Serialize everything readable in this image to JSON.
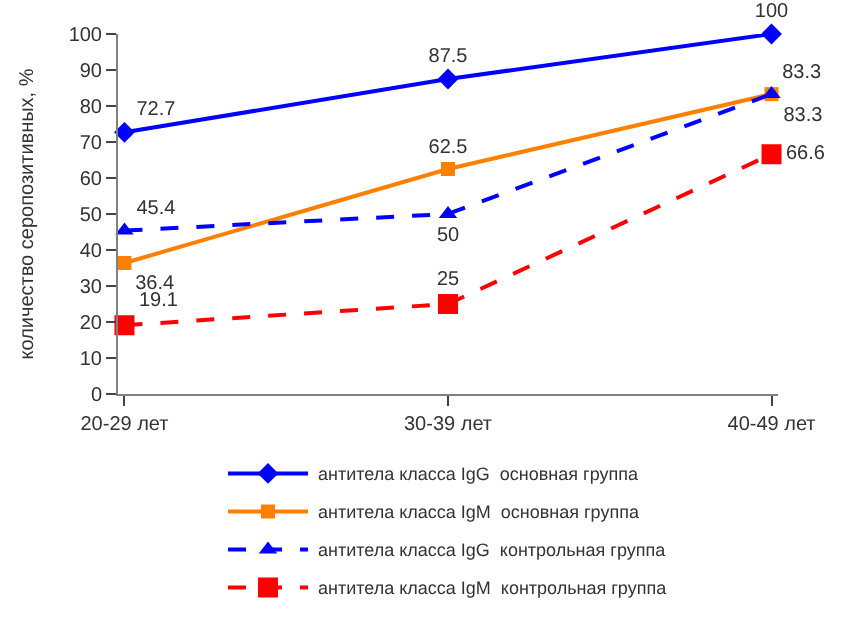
{
  "chart_data": {
    "type": "line",
    "ylabel": "количество серопозитивных, %",
    "categories": [
      "20-29 лет",
      "30-39 лет",
      "40-49 лет"
    ],
    "series": [
      {
        "name": "антитела класса IgG  основная группа",
        "color": "#0000ff",
        "values": [
          72.7,
          87.5,
          100
        ],
        "marker": "diamond",
        "line_style": "solid"
      },
      {
        "name": "антитела класса IgM  основная группа",
        "color": "#ff8000",
        "values": [
          36.4,
          62.5,
          83.3
        ],
        "marker": "square",
        "line_style": "solid"
      },
      {
        "name": "антитела класса IgG  контрольная группа",
        "color": "#0000ff",
        "values": [
          45.4,
          50,
          83.3
        ],
        "marker": "triangle",
        "line_style": "dashed"
      },
      {
        "name": "антитела класса IgM  контрольная группа",
        "color": "#ff0000",
        "values": [
          19.1,
          25,
          66.6
        ],
        "marker": "square",
        "line_style": "dashed"
      }
    ],
    "ylim": [
      0,
      100
    ],
    "yticks": [
      0,
      10,
      20,
      30,
      40,
      50,
      60,
      70,
      80,
      90,
      100
    ],
    "data_labels": true,
    "legend": "bottom"
  }
}
